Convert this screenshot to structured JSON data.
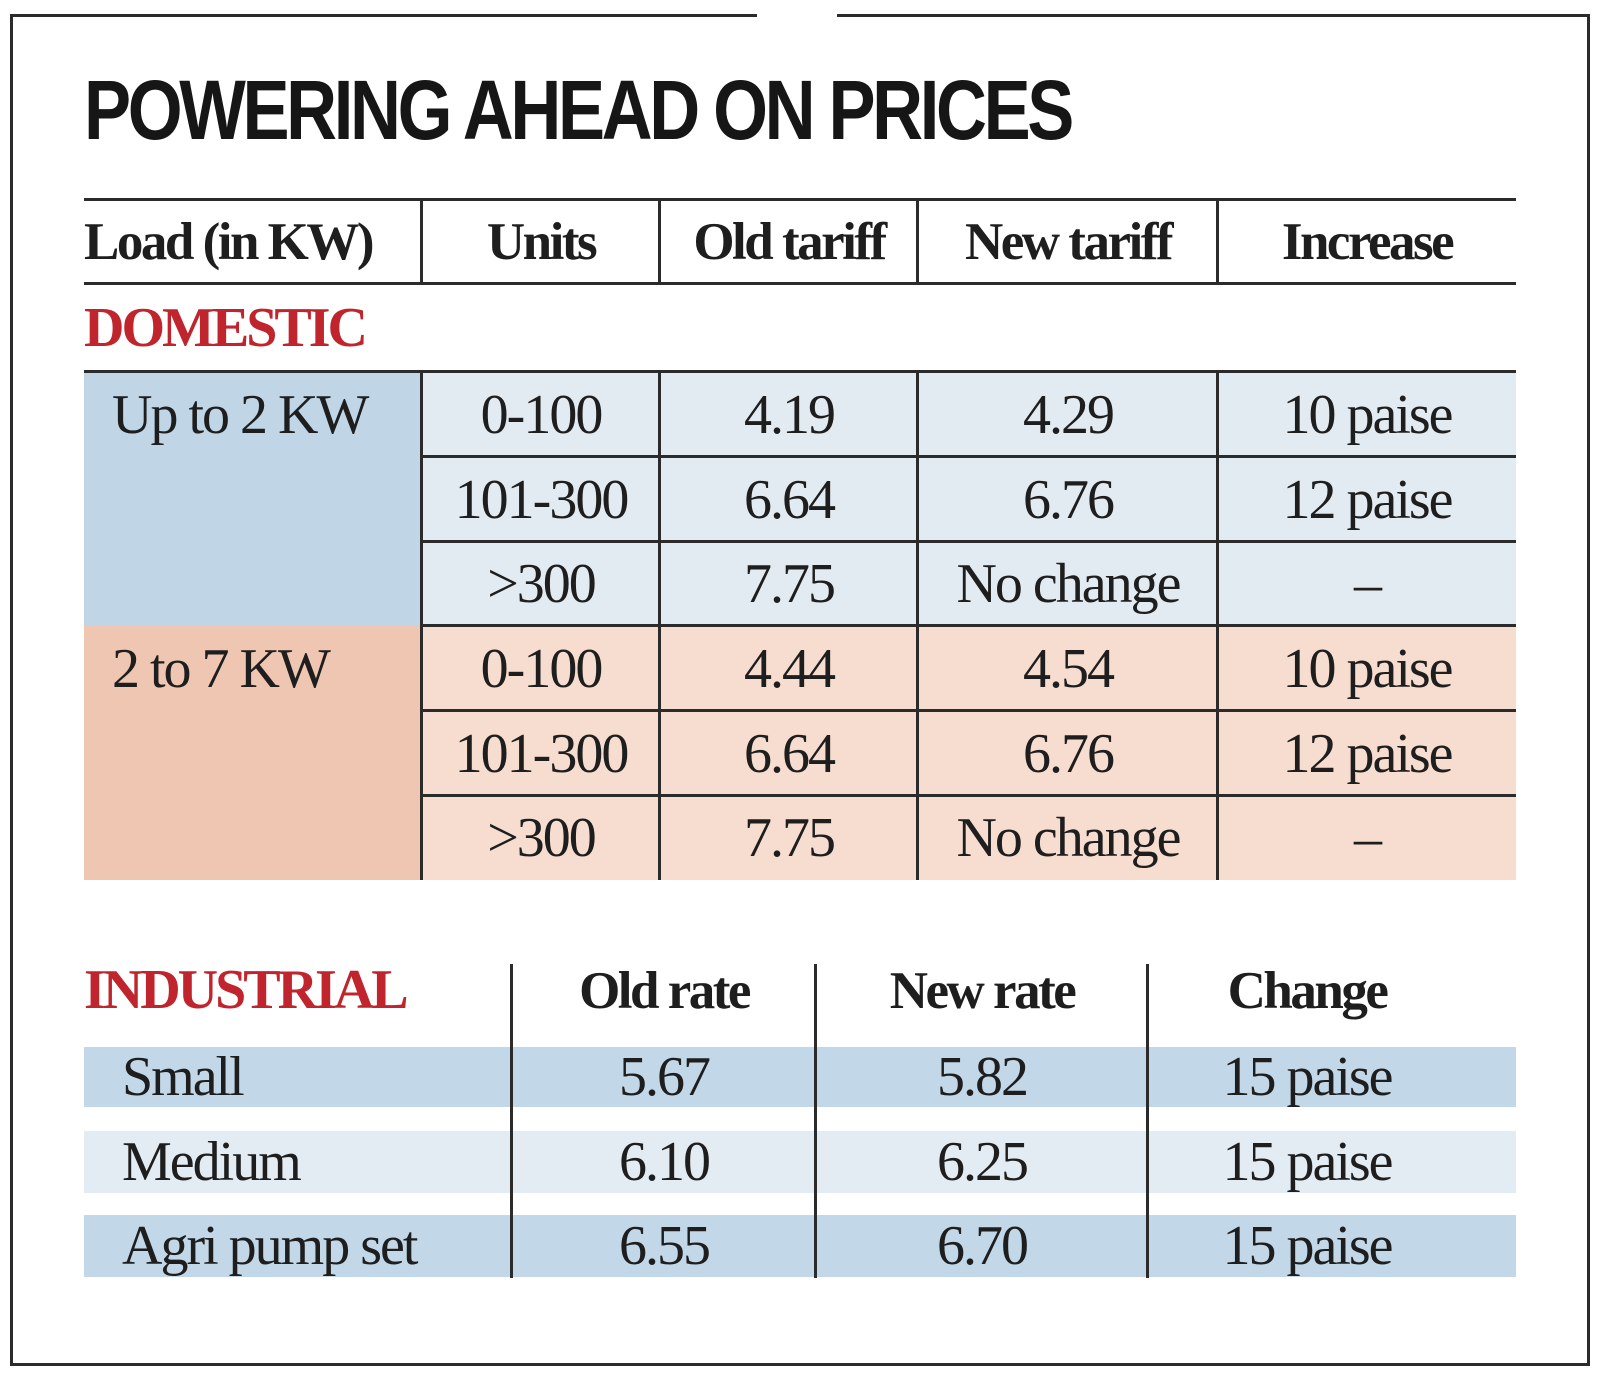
{
  "title": "POWERING AHEAD ON PRICES",
  "domestic": {
    "section_label": "DOMESTIC",
    "headers": [
      "Load (in KW)",
      "Units",
      "Old tariff",
      "New tariff",
      "Increase"
    ],
    "groups": [
      {
        "load": "Up to 2 KW",
        "color": "#c0d6e6",
        "rows": [
          {
            "units": "0-100",
            "old": "4.19",
            "new": "4.29",
            "increase": "10 paise"
          },
          {
            "units": "101-300",
            "old": "6.64",
            "new": "6.76",
            "increase": "12 paise"
          },
          {
            "units": ">300",
            "old": "7.75",
            "new": "No change",
            "increase": "–"
          }
        ]
      },
      {
        "load": "2 to 7 KW",
        "color": "#efc6b2",
        "rows": [
          {
            "units": "0-100",
            "old": "4.44",
            "new": "4.54",
            "increase": "10 paise"
          },
          {
            "units": "101-300",
            "old": "6.64",
            "new": "6.76",
            "increase": "12 paise"
          },
          {
            "units": ">300",
            "old": "7.75",
            "new": "No change",
            "increase": "–"
          }
        ]
      }
    ]
  },
  "industrial": {
    "section_label": "INDUSTRIAL",
    "headers": [
      "Old rate",
      "New rate",
      "Change"
    ],
    "rows": [
      {
        "category": "Small",
        "old": "5.67",
        "new": "5.82",
        "change": "15 paise"
      },
      {
        "category": "Medium",
        "old": "6.10",
        "new": "6.25",
        "change": "15 paise"
      },
      {
        "category": "Agri pump set",
        "old": "6.55",
        "new": "6.70",
        "change": "15 paise"
      }
    ]
  },
  "colors": {
    "accent_red": "#c0242c",
    "blue_band": "#e3ebf2",
    "salmon_band": "#f6ddd0"
  }
}
